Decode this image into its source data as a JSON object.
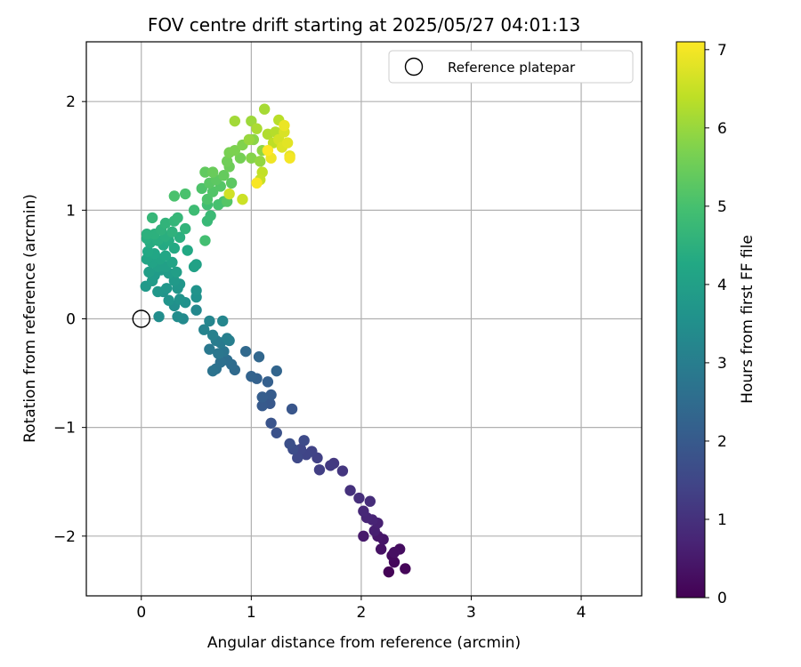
{
  "chart_data": {
    "type": "scatter",
    "title": "FOV centre drift starting at 2025/05/27 04:01:13",
    "xlabel": "Angular distance from reference (arcmin)",
    "ylabel": "Rotation from reference (arcmin)",
    "xlim": [
      -0.5,
      4.55
    ],
    "ylim": [
      -2.55,
      2.55
    ],
    "xticks": [
      0,
      1,
      2,
      3,
      4
    ],
    "yticks": [
      -2,
      -1,
      0,
      1,
      2
    ],
    "xtick_labels": [
      "0",
      "1",
      "2",
      "3",
      "4"
    ],
    "ytick_labels": [
      "−2",
      "−1",
      "0",
      "1",
      "2"
    ],
    "grid": true,
    "legend": {
      "position": "top-right",
      "entries": [
        "Reference platepar"
      ]
    },
    "colorbar": {
      "label": "Hours from first FF file",
      "colormap": "viridis",
      "range": [
        0,
        7.1
      ],
      "ticks": [
        0,
        1,
        2,
        3,
        4,
        5,
        6,
        7
      ]
    },
    "reference_point": {
      "x": 0,
      "y": 0,
      "marker": "open-circle",
      "color": "#000000"
    },
    "points": [
      {
        "x": 2.25,
        "y": -2.33,
        "h": 0.05
      },
      {
        "x": 2.4,
        "y": -2.3,
        "h": 0.1
      },
      {
        "x": 2.3,
        "y": -2.24,
        "h": 0.15
      },
      {
        "x": 2.28,
        "y": -2.18,
        "h": 0.2
      },
      {
        "x": 2.35,
        "y": -2.12,
        "h": 0.25
      },
      {
        "x": 2.3,
        "y": -2.15,
        "h": 0.3
      },
      {
        "x": 2.18,
        "y": -2.12,
        "h": 0.35
      },
      {
        "x": 2.2,
        "y": -2.03,
        "h": 0.4
      },
      {
        "x": 2.15,
        "y": -2.0,
        "h": 0.45
      },
      {
        "x": 2.02,
        "y": -2.0,
        "h": 0.5
      },
      {
        "x": 2.12,
        "y": -1.95,
        "h": 0.6
      },
      {
        "x": 2.15,
        "y": -1.88,
        "h": 0.65
      },
      {
        "x": 2.1,
        "y": -1.85,
        "h": 0.7
      },
      {
        "x": 2.05,
        "y": -1.83,
        "h": 0.75
      },
      {
        "x": 2.02,
        "y": -1.77,
        "h": 0.8
      },
      {
        "x": 2.08,
        "y": -1.68,
        "h": 0.9
      },
      {
        "x": 1.98,
        "y": -1.65,
        "h": 0.95
      },
      {
        "x": 1.9,
        "y": -1.58,
        "h": 1.0
      },
      {
        "x": 1.83,
        "y": -1.4,
        "h": 1.1
      },
      {
        "x": 1.75,
        "y": -1.33,
        "h": 1.15
      },
      {
        "x": 1.72,
        "y": -1.35,
        "h": 1.2
      },
      {
        "x": 1.62,
        "y": -1.39,
        "h": 1.3
      },
      {
        "x": 1.6,
        "y": -1.28,
        "h": 1.35
      },
      {
        "x": 1.55,
        "y": -1.22,
        "h": 1.4
      },
      {
        "x": 1.5,
        "y": -1.25,
        "h": 1.45
      },
      {
        "x": 1.45,
        "y": -1.2,
        "h": 1.5
      },
      {
        "x": 1.42,
        "y": -1.28,
        "h": 1.55
      },
      {
        "x": 1.48,
        "y": -1.12,
        "h": 1.6
      },
      {
        "x": 1.38,
        "y": -1.2,
        "h": 1.65
      },
      {
        "x": 1.35,
        "y": -1.15,
        "h": 1.7
      },
      {
        "x": 1.23,
        "y": -1.05,
        "h": 1.8
      },
      {
        "x": 1.18,
        "y": -0.96,
        "h": 1.85
      },
      {
        "x": 1.37,
        "y": -0.83,
        "h": 1.9
      },
      {
        "x": 1.17,
        "y": -0.78,
        "h": 1.95
      },
      {
        "x": 1.1,
        "y": -0.8,
        "h": 2.0
      },
      {
        "x": 1.18,
        "y": -0.7,
        "h": 2.05
      },
      {
        "x": 1.1,
        "y": -0.72,
        "h": 2.1
      },
      {
        "x": 1.15,
        "y": -0.58,
        "h": 2.15
      },
      {
        "x": 1.05,
        "y": -0.55,
        "h": 2.2
      },
      {
        "x": 1.0,
        "y": -0.53,
        "h": 2.25
      },
      {
        "x": 1.23,
        "y": -0.48,
        "h": 2.3
      },
      {
        "x": 1.07,
        "y": -0.35,
        "h": 2.35
      },
      {
        "x": 0.95,
        "y": -0.3,
        "h": 2.4
      },
      {
        "x": 0.85,
        "y": -0.47,
        "h": 2.45
      },
      {
        "x": 0.82,
        "y": -0.42,
        "h": 2.5
      },
      {
        "x": 0.78,
        "y": -0.38,
        "h": 2.55
      },
      {
        "x": 0.72,
        "y": -0.4,
        "h": 2.6
      },
      {
        "x": 0.68,
        "y": -0.46,
        "h": 2.65
      },
      {
        "x": 0.65,
        "y": -0.48,
        "h": 2.7
      },
      {
        "x": 0.75,
        "y": -0.3,
        "h": 2.75
      },
      {
        "x": 0.7,
        "y": -0.32,
        "h": 2.8
      },
      {
        "x": 0.62,
        "y": -0.28,
        "h": 2.85
      },
      {
        "x": 0.72,
        "y": -0.22,
        "h": 2.9
      },
      {
        "x": 0.68,
        "y": -0.2,
        "h": 2.95
      },
      {
        "x": 0.8,
        "y": -0.2,
        "h": 3.0
      },
      {
        "x": 0.78,
        "y": -0.18,
        "h": 3.05
      },
      {
        "x": 0.65,
        "y": -0.15,
        "h": 3.1
      },
      {
        "x": 0.57,
        "y": -0.1,
        "h": 3.15
      },
      {
        "x": 0.62,
        "y": -0.02,
        "h": 3.2
      },
      {
        "x": 0.74,
        "y": -0.02,
        "h": 3.25
      },
      {
        "x": 0.5,
        "y": 0.08,
        "h": 3.3
      },
      {
        "x": 0.38,
        "y": 0.0,
        "h": 3.35
      },
      {
        "x": 0.33,
        "y": 0.02,
        "h": 3.4
      },
      {
        "x": 0.16,
        "y": 0.02,
        "h": 3.45
      },
      {
        "x": 0.3,
        "y": 0.12,
        "h": 3.5
      },
      {
        "x": 0.4,
        "y": 0.15,
        "h": 3.55
      },
      {
        "x": 0.5,
        "y": 0.2,
        "h": 3.55
      },
      {
        "x": 0.5,
        "y": 0.26,
        "h": 3.6
      },
      {
        "x": 0.35,
        "y": 0.18,
        "h": 3.6
      },
      {
        "x": 0.25,
        "y": 0.17,
        "h": 3.65
      },
      {
        "x": 0.2,
        "y": 0.25,
        "h": 3.65
      },
      {
        "x": 0.33,
        "y": 0.28,
        "h": 3.7
      },
      {
        "x": 0.35,
        "y": 0.32,
        "h": 3.7
      },
      {
        "x": 0.15,
        "y": 0.25,
        "h": 3.75
      },
      {
        "x": 0.23,
        "y": 0.28,
        "h": 3.75
      },
      {
        "x": 0.3,
        "y": 0.35,
        "h": 3.8
      },
      {
        "x": 0.04,
        "y": 0.3,
        "h": 3.8
      },
      {
        "x": 0.1,
        "y": 0.35,
        "h": 3.85
      },
      {
        "x": 0.12,
        "y": 0.4,
        "h": 3.85
      },
      {
        "x": 0.25,
        "y": 0.42,
        "h": 3.9
      },
      {
        "x": 0.18,
        "y": 0.45,
        "h": 3.9
      },
      {
        "x": 0.32,
        "y": 0.43,
        "h": 3.95
      },
      {
        "x": 0.07,
        "y": 0.43,
        "h": 3.95
      },
      {
        "x": 0.15,
        "y": 0.48,
        "h": 4.0
      },
      {
        "x": 0.22,
        "y": 0.48,
        "h": 4.0
      },
      {
        "x": 0.48,
        "y": 0.48,
        "h": 4.05
      },
      {
        "x": 0.5,
        "y": 0.5,
        "h": 4.05
      },
      {
        "x": 0.28,
        "y": 0.52,
        "h": 4.1
      },
      {
        "x": 0.1,
        "y": 0.52,
        "h": 4.1
      },
      {
        "x": 0.05,
        "y": 0.55,
        "h": 4.15
      },
      {
        "x": 0.17,
        "y": 0.55,
        "h": 4.15
      },
      {
        "x": 0.22,
        "y": 0.58,
        "h": 4.2
      },
      {
        "x": 0.12,
        "y": 0.6,
        "h": 4.2
      },
      {
        "x": 0.42,
        "y": 0.63,
        "h": 4.25
      },
      {
        "x": 0.06,
        "y": 0.62,
        "h": 4.25
      },
      {
        "x": 0.3,
        "y": 0.65,
        "h": 4.3
      },
      {
        "x": 0.2,
        "y": 0.68,
        "h": 4.3
      },
      {
        "x": 0.08,
        "y": 0.7,
        "h": 4.35
      },
      {
        "x": 0.25,
        "y": 0.72,
        "h": 4.35
      },
      {
        "x": 0.15,
        "y": 0.72,
        "h": 4.4
      },
      {
        "x": 0.05,
        "y": 0.74,
        "h": 4.4
      },
      {
        "x": 0.35,
        "y": 0.75,
        "h": 4.45
      },
      {
        "x": 0.22,
        "y": 0.76,
        "h": 4.45
      },
      {
        "x": 0.12,
        "y": 0.78,
        "h": 4.5
      },
      {
        "x": 0.05,
        "y": 0.78,
        "h": 4.5
      },
      {
        "x": 0.28,
        "y": 0.8,
        "h": 4.55
      },
      {
        "x": 0.18,
        "y": 0.82,
        "h": 4.55
      },
      {
        "x": 0.4,
        "y": 0.83,
        "h": 4.6
      },
      {
        "x": 0.22,
        "y": 0.88,
        "h": 4.6
      },
      {
        "x": 0.3,
        "y": 0.9,
        "h": 4.65
      },
      {
        "x": 0.33,
        "y": 0.93,
        "h": 4.7
      },
      {
        "x": 0.1,
        "y": 0.93,
        "h": 4.7
      },
      {
        "x": 0.6,
        "y": 0.9,
        "h": 4.75
      },
      {
        "x": 0.63,
        "y": 0.95,
        "h": 4.8
      },
      {
        "x": 0.48,
        "y": 1.0,
        "h": 4.85
      },
      {
        "x": 0.6,
        "y": 1.05,
        "h": 4.9
      },
      {
        "x": 0.58,
        "y": 0.72,
        "h": 4.95
      },
      {
        "x": 0.7,
        "y": 1.05,
        "h": 5.0
      },
      {
        "x": 0.75,
        "y": 1.08,
        "h": 5.0
      },
      {
        "x": 0.4,
        "y": 1.15,
        "h": 5.05
      },
      {
        "x": 0.3,
        "y": 1.13,
        "h": 5.05
      },
      {
        "x": 0.6,
        "y": 1.1,
        "h": 5.1
      },
      {
        "x": 0.55,
        "y": 1.2,
        "h": 5.1
      },
      {
        "x": 0.65,
        "y": 1.17,
        "h": 5.15
      },
      {
        "x": 0.72,
        "y": 1.22,
        "h": 5.2
      },
      {
        "x": 0.78,
        "y": 1.08,
        "h": 5.2
      },
      {
        "x": 0.62,
        "y": 1.25,
        "h": 5.25
      },
      {
        "x": 0.68,
        "y": 1.28,
        "h": 5.3
      },
      {
        "x": 0.82,
        "y": 1.25,
        "h": 5.3
      },
      {
        "x": 0.58,
        "y": 1.35,
        "h": 5.35
      },
      {
        "x": 0.75,
        "y": 1.32,
        "h": 5.4
      },
      {
        "x": 0.65,
        "y": 1.35,
        "h": 5.45
      },
      {
        "x": 0.8,
        "y": 1.4,
        "h": 5.5
      },
      {
        "x": 0.78,
        "y": 1.45,
        "h": 5.55
      },
      {
        "x": 0.9,
        "y": 1.48,
        "h": 5.6
      },
      {
        "x": 0.8,
        "y": 1.53,
        "h": 5.65
      },
      {
        "x": 0.85,
        "y": 1.55,
        "h": 5.7
      },
      {
        "x": 0.92,
        "y": 1.6,
        "h": 5.75
      },
      {
        "x": 1.0,
        "y": 1.48,
        "h": 5.8
      },
      {
        "x": 1.02,
        "y": 1.65,
        "h": 5.85
      },
      {
        "x": 1.1,
        "y": 1.55,
        "h": 5.9
      },
      {
        "x": 1.08,
        "y": 1.45,
        "h": 5.95
      },
      {
        "x": 0.98,
        "y": 1.65,
        "h": 6.0
      },
      {
        "x": 1.0,
        "y": 1.82,
        "h": 6.05
      },
      {
        "x": 0.85,
        "y": 1.82,
        "h": 6.1
      },
      {
        "x": 1.12,
        "y": 1.93,
        "h": 6.15
      },
      {
        "x": 1.05,
        "y": 1.75,
        "h": 6.2
      },
      {
        "x": 1.15,
        "y": 1.7,
        "h": 6.25
      },
      {
        "x": 1.22,
        "y": 1.72,
        "h": 6.3
      },
      {
        "x": 1.25,
        "y": 1.83,
        "h": 6.35
      },
      {
        "x": 1.2,
        "y": 1.62,
        "h": 6.4
      },
      {
        "x": 1.1,
        "y": 1.35,
        "h": 6.45
      },
      {
        "x": 1.08,
        "y": 1.28,
        "h": 6.5
      },
      {
        "x": 0.92,
        "y": 1.1,
        "h": 6.55
      },
      {
        "x": 0.8,
        "y": 1.15,
        "h": 6.6
      },
      {
        "x": 1.25,
        "y": 1.65,
        "h": 6.65
      },
      {
        "x": 1.3,
        "y": 1.72,
        "h": 6.7
      },
      {
        "x": 1.28,
        "y": 1.58,
        "h": 6.75
      },
      {
        "x": 1.33,
        "y": 1.62,
        "h": 6.8
      },
      {
        "x": 1.35,
        "y": 1.5,
        "h": 6.85
      },
      {
        "x": 1.3,
        "y": 1.78,
        "h": 6.9
      },
      {
        "x": 1.18,
        "y": 1.48,
        "h": 6.95
      },
      {
        "x": 1.35,
        "y": 1.48,
        "h": 7.0
      },
      {
        "x": 1.05,
        "y": 1.25,
        "h": 7.05
      },
      {
        "x": 1.15,
        "y": 1.55,
        "h": 7.1
      }
    ]
  }
}
